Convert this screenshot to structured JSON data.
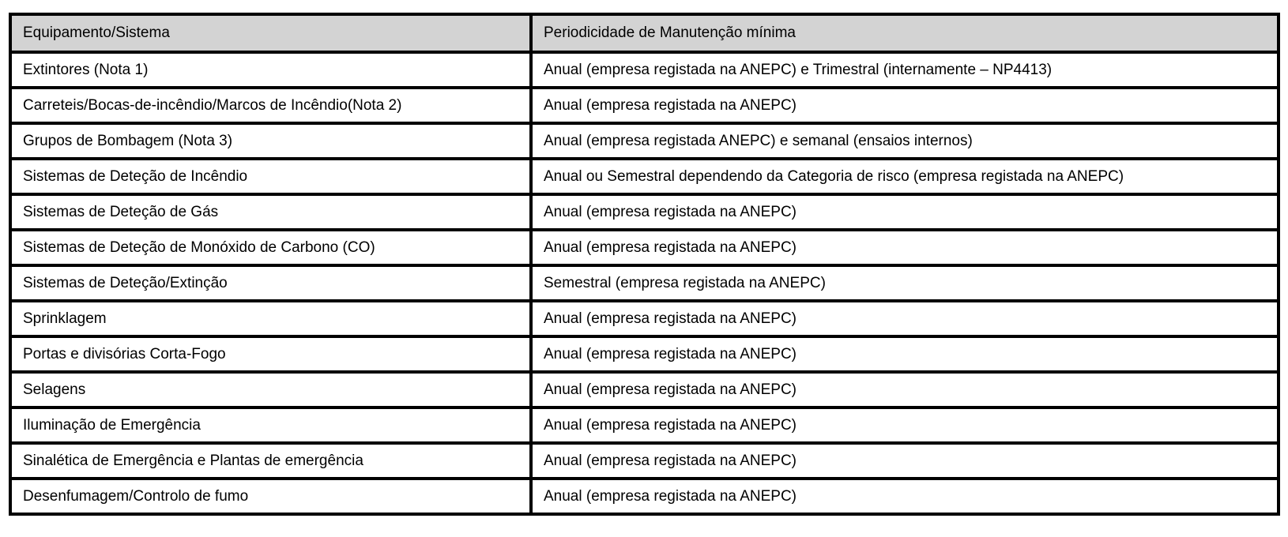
{
  "table": {
    "headers": [
      "Equipamento/Sistema",
      "Periodicidade de Manutenção mínima"
    ],
    "rows": [
      {
        "equipment": "Extintores (Nota 1)",
        "periodicity": "Anual (empresa registada na ANEPC) e Trimestral (internamente – NP4413)"
      },
      {
        "equipment": "Carreteis/Bocas-de-incêndio/Marcos de Incêndio(Nota 2)",
        "periodicity": "Anual (empresa registada na ANEPC)"
      },
      {
        "equipment": "Grupos de Bombagem (Nota 3)",
        "periodicity": "Anual (empresa registada ANEPC) e semanal (ensaios internos)"
      },
      {
        "equipment": "Sistemas de Deteção de Incêndio",
        "periodicity": "Anual ou Semestral dependendo da Categoria de risco (empresa registada na ANEPC)"
      },
      {
        "equipment": "Sistemas de Deteção de Gás",
        "periodicity": "Anual (empresa registada na ANEPC)"
      },
      {
        "equipment": "Sistemas de Deteção de Monóxido de Carbono (CO)",
        "periodicity": "Anual (empresa registada na ANEPC)"
      },
      {
        "equipment": "Sistemas de Deteção/Extinção",
        "periodicity": "Semestral (empresa registada na ANEPC)"
      },
      {
        "equipment": "Sprinklagem",
        "periodicity": "Anual (empresa registada na ANEPC)"
      },
      {
        "equipment": "Portas e divisórias Corta-Fogo",
        "periodicity": "Anual (empresa registada na ANEPC)"
      },
      {
        "equipment": "Selagens",
        "periodicity": "Anual (empresa registada na ANEPC)"
      },
      {
        "equipment": "Iluminação de Emergência",
        "periodicity": "Anual (empresa registada na ANEPC)"
      },
      {
        "equipment": "Sinalética de Emergência e Plantas de emergência",
        "periodicity": "Anual (empresa registada na ANEPC)"
      },
      {
        "equipment": "Desenfumagem/Controlo de fumo",
        "periodicity": "Anual (empresa registada na ANEPC)"
      }
    ]
  },
  "colors": {
    "header_bg": "#d3d3d3",
    "border": "#000000",
    "text": "#000000"
  }
}
